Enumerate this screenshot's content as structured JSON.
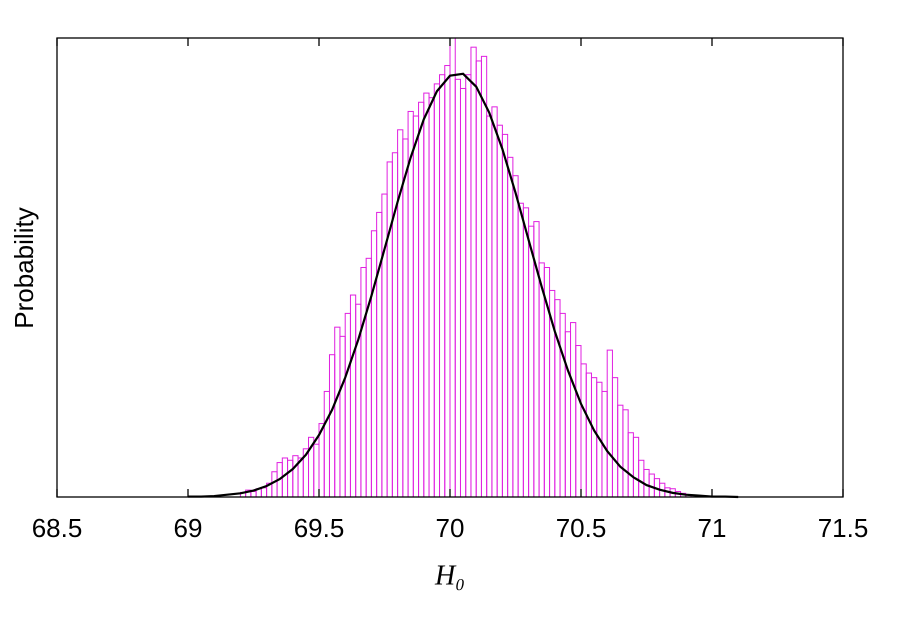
{
  "chart_data": {
    "type": "histogram",
    "xlabel": "H₀",
    "ylabel": "Probability",
    "xlim": [
      68.5,
      71.5
    ],
    "xticks": [
      68.5,
      69,
      69.5,
      70,
      70.5,
      71,
      71.5
    ],
    "ylim": [
      0,
      1
    ],
    "color": "#e020e0",
    "bins": [
      69.2,
      69.22,
      69.24,
      69.26,
      69.28,
      69.3,
      69.32,
      69.34,
      69.36,
      69.38,
      69.4,
      69.42,
      69.44,
      69.46,
      69.48,
      69.5,
      69.52,
      69.54,
      69.56,
      69.58,
      69.6,
      69.62,
      69.64,
      69.66,
      69.68,
      69.7,
      69.72,
      69.74,
      69.76,
      69.78,
      69.8,
      69.82,
      69.84,
      69.86,
      69.88,
      69.9,
      69.92,
      69.94,
      69.96,
      69.98,
      70.0,
      70.02,
      70.04,
      70.06,
      70.08,
      70.1,
      70.12,
      70.14,
      70.16,
      70.18,
      70.2,
      70.22,
      70.24,
      70.26,
      70.28,
      70.3,
      70.32,
      70.34,
      70.36,
      70.38,
      70.4,
      70.42,
      70.44,
      70.46,
      70.48,
      70.5,
      70.52,
      70.54,
      70.56,
      70.58,
      70.6,
      70.62,
      70.64,
      70.66,
      70.68,
      70.7,
      70.72,
      70.74,
      70.76,
      70.78,
      70.8,
      70.82,
      70.84,
      70.86,
      70.88,
      70.9,
      70.92
    ],
    "values": [
      0.01,
      0.015,
      0.012,
      0.018,
      0.02,
      0.03,
      0.055,
      0.075,
      0.085,
      0.08,
      0.09,
      0.085,
      0.105,
      0.13,
      0.115,
      0.16,
      0.23,
      0.31,
      0.37,
      0.35,
      0.4,
      0.44,
      0.42,
      0.5,
      0.52,
      0.58,
      0.62,
      0.66,
      0.73,
      0.75,
      0.8,
      0.78,
      0.84,
      0.83,
      0.86,
      0.88,
      0.87,
      0.9,
      0.92,
      0.94,
      1.0,
      0.91,
      0.89,
      0.92,
      0.98,
      0.95,
      0.96,
      0.83,
      0.85,
      0.81,
      0.79,
      0.74,
      0.7,
      0.64,
      0.63,
      0.59,
      0.6,
      0.51,
      0.5,
      0.45,
      0.43,
      0.4,
      0.36,
      0.38,
      0.33,
      0.29,
      0.27,
      0.26,
      0.25,
      0.23,
      0.32,
      0.26,
      0.2,
      0.19,
      0.14,
      0.13,
      0.08,
      0.06,
      0.05,
      0.04,
      0.03,
      0.02,
      0.018,
      0.012,
      0.008,
      0.005
    ],
    "fit": {
      "type": "line",
      "color": "#000000",
      "x": [
        69.0,
        69.05,
        69.1,
        69.15,
        69.2,
        69.25,
        69.3,
        69.35,
        69.4,
        69.45,
        69.5,
        69.55,
        69.6,
        69.65,
        69.7,
        69.75,
        69.8,
        69.85,
        69.9,
        69.95,
        70.0,
        70.05,
        70.1,
        70.15,
        70.2,
        70.25,
        70.3,
        70.35,
        70.4,
        70.45,
        70.5,
        70.55,
        70.6,
        70.65,
        70.7,
        70.75,
        70.8,
        70.85,
        70.9,
        70.95,
        71.0,
        71.05,
        71.1
      ],
      "values": [
        0.001,
        0.001,
        0.002,
        0.005,
        0.008,
        0.014,
        0.024,
        0.039,
        0.061,
        0.092,
        0.135,
        0.19,
        0.26,
        0.343,
        0.438,
        0.54,
        0.643,
        0.74,
        0.823,
        0.884,
        0.918,
        0.922,
        0.894,
        0.837,
        0.758,
        0.663,
        0.56,
        0.458,
        0.361,
        0.276,
        0.203,
        0.145,
        0.1,
        0.066,
        0.043,
        0.026,
        0.016,
        0.009,
        0.005,
        0.003,
        0.001,
        0.001,
        0.0
      ]
    }
  }
}
